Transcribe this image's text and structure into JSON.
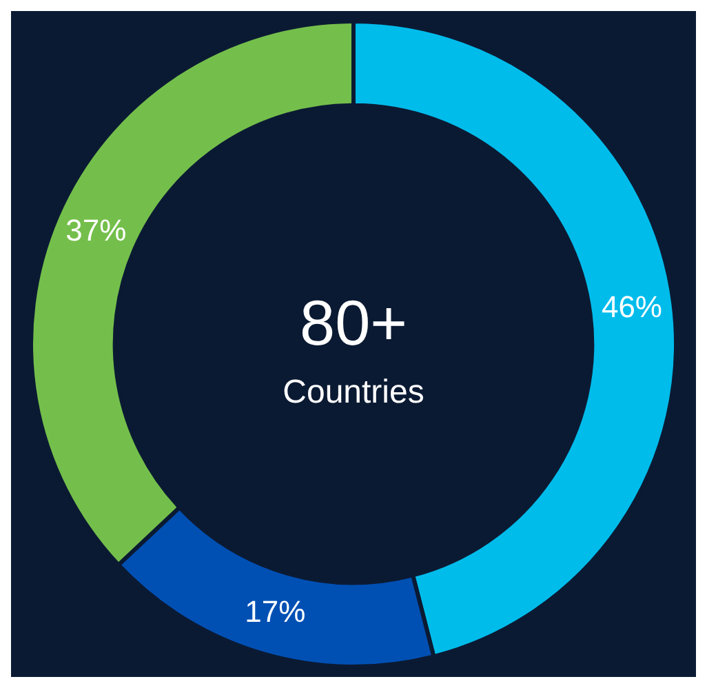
{
  "chart_data": {
    "type": "donut",
    "categories": [
      null,
      null,
      null
    ],
    "values": [
      46,
      17,
      37
    ],
    "colors": [
      "#00bceb",
      "#0050b4",
      "#74bf4b"
    ],
    "value_labels": [
      "46%",
      "17%",
      "37%"
    ],
    "annotations": [
      "80+",
      "Countries"
    ]
  }
}
